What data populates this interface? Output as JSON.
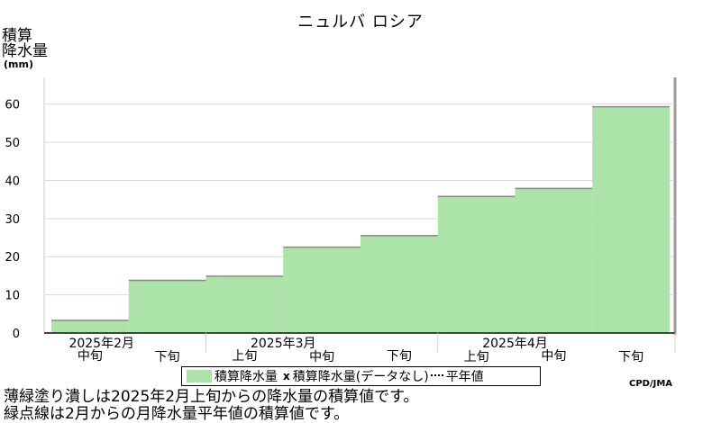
{
  "header": {
    "title": "ニュルバ ロシア",
    "ylabel_line1": "積算",
    "ylabel_line2": "降水量",
    "yunit": "(mm)"
  },
  "legend": {
    "bar_label": "積算降水量",
    "missing_mark": "x",
    "missing_label": "積算降水量(データなし)",
    "normal_label": "平年値"
  },
  "credit": "CPD/JMA",
  "notes": {
    "line1": "薄緑塗り潰しは2025年2月上旬からの降水量の積算値です。",
    "line2": "緑点線は2月からの月降水量平年値の積算値です。"
  },
  "chart_data": {
    "type": "bar",
    "title": "ニュルバ ロシア",
    "ylabel": "積算降水量(mm)",
    "ylim": [
      0,
      67
    ],
    "yticks": [
      0,
      10,
      20,
      30,
      40,
      50,
      60
    ],
    "grid": true,
    "categories": [
      "中旬",
      "下旬",
      "上旬",
      "中旬",
      "下旬",
      "上旬",
      "中旬",
      "下旬"
    ],
    "months": [
      {
        "label": "2025年2月",
        "start": 0,
        "end": 2
      },
      {
        "label": "2025年3月",
        "start": 2,
        "end": 5
      },
      {
        "label": "2025年4月",
        "start": 5,
        "end": 8
      }
    ],
    "series": [
      {
        "name": "積算降水量",
        "values": [
          3.3,
          13.8,
          14.9,
          22.5,
          25.5,
          35.8,
          37.9,
          59.3
        ],
        "color": "#abe3a8"
      }
    ]
  }
}
